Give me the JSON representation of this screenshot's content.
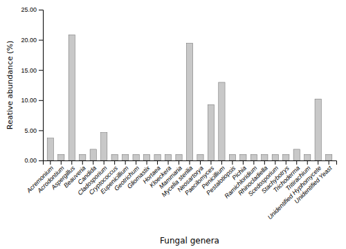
{
  "chart_data": {
    "type": "bar",
    "categories": [
      "Acremonium",
      "Acrodontium",
      "Aspergillus",
      "Beauveria",
      "Candida",
      "Cladosporium",
      "Cryptococcus",
      "Eupenicillium",
      "Geotrichum",
      "Gliomastix",
      "Hortaea",
      "Kloeckera",
      "Mammaria",
      "Mycelia sterilia",
      "Neosartorya",
      "Paecilomyces",
      "Penicillium",
      "Pestalotiopsis",
      "Pichia",
      "Ramichloridium",
      "Rhinocladiella",
      "Scedosporium",
      "Stachybotrys",
      "Trichoderma",
      "Tritirachium",
      "Unidentified Hyphomycete",
      "Unidentified Yeast"
    ],
    "values": [
      3.7,
      1.0,
      20.83,
      1.0,
      1.85,
      4.63,
      1.0,
      1.0,
      1.0,
      1.0,
      1.0,
      1.0,
      1.0,
      19.44,
      1.0,
      9.26,
      12.96,
      1.0,
      1.0,
      1.0,
      1.0,
      1.0,
      1.0,
      1.85,
      1.0,
      10.19,
      1.0
    ],
    "color": "#c8c8c8",
    "xlabel": "Fungal genera",
    "ylabel": "Reative abundance (%)",
    "ylim": [
      0,
      25.0
    ],
    "yticks": [
      {
        "value": 0,
        "label": "0.00"
      },
      {
        "value": 5,
        "label": "5.00"
      },
      {
        "value": 10,
        "label": "10.00"
      },
      {
        "value": 15,
        "label": "15.00"
      },
      {
        "value": 20,
        "label": "20.00"
      },
      {
        "value": 25,
        "label": "25.00"
      }
    ],
    "grid": false
  }
}
